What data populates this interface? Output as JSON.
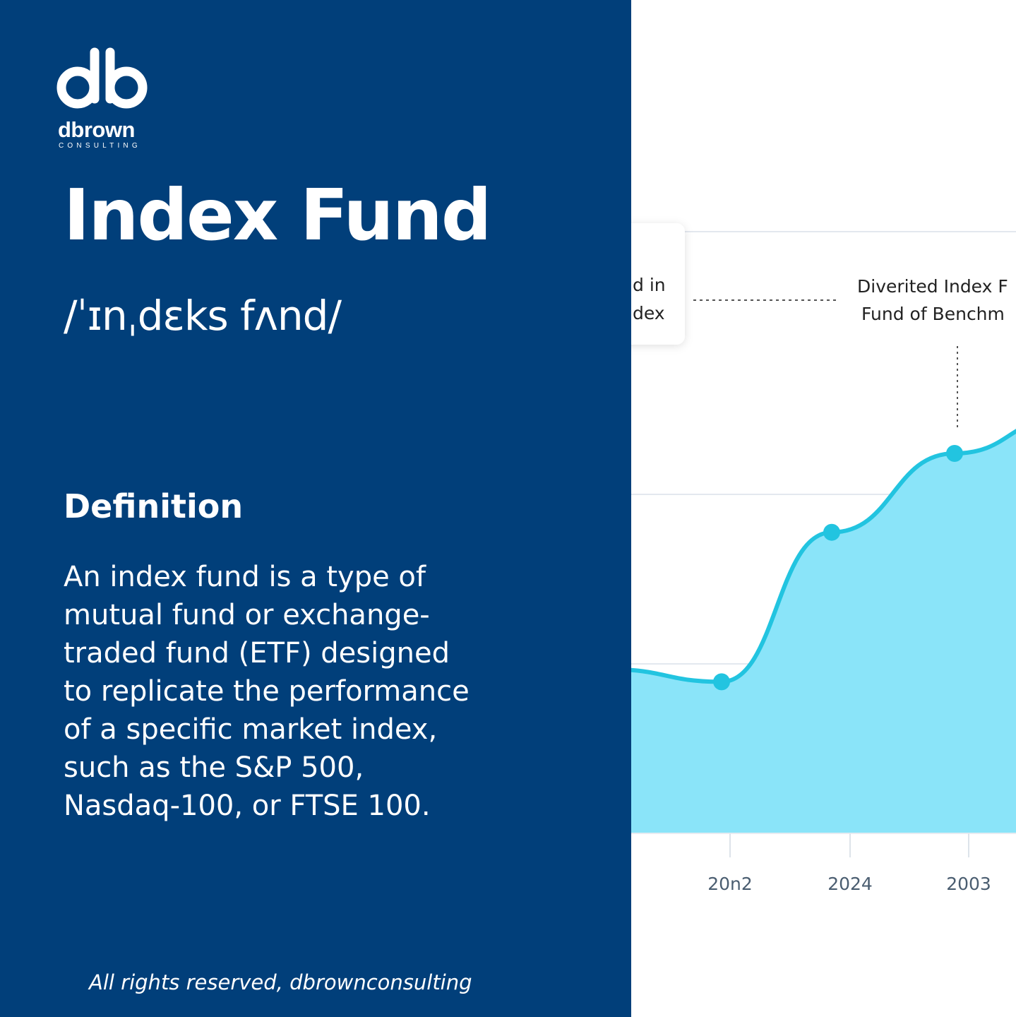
{
  "brand": {
    "logo_mark": "db",
    "name": "dbrown",
    "tagline": "CONSULTING",
    "colors": {
      "panel": "#013f7a",
      "accent": "#22c4e0",
      "fill": "#8ae4f9"
    }
  },
  "term": {
    "title": "Index Fund",
    "phonetic": "/ˈɪnˌdɛks fʌnd/"
  },
  "definition": {
    "heading": "Definition",
    "lines": [
      "An index fund is a type of",
      "mutual fund or exchange-",
      "traded fund (ETF) designed",
      "to replicate the performance",
      "of a specific market index,",
      "such as the S&P 500,",
      "Nasdaq-100, or FTSE 100."
    ]
  },
  "footer": {
    "text": "All rights reserved, dbrownconsulting"
  },
  "chart_data": {
    "type": "area",
    "x": [
      "",
      "20n2",
      "2024",
      "2003",
      ""
    ],
    "y_relative": [
      0.395,
      0.365,
      0.725,
      0.915,
      1.0
    ],
    "annotations": [
      {
        "lines": [
          "d in",
          "dex"
        ]
      },
      {
        "lines": [
          "Diverited Index F",
          "Fund of Benchm"
        ]
      }
    ],
    "grid": "horizontal",
    "legend": "none"
  }
}
